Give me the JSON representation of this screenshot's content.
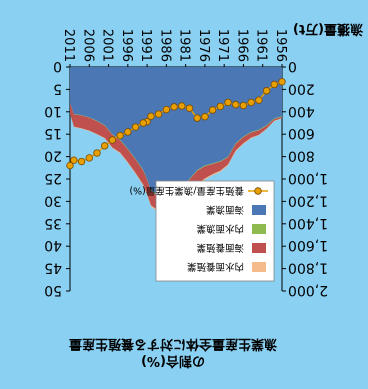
{
  "chart_data": {
    "type": "area",
    "title": "漁業生産量全体に対する養殖生産量",
    "subtitle": "の割合(%)",
    "ylabel": "漁獲量(万t)",
    "x": [
      1956,
      1958,
      1960,
      1962,
      1964,
      1966,
      1968,
      1970,
      1972,
      1974,
      1976,
      1978,
      1980,
      1982,
      1984,
      1986,
      1988,
      1990,
      1991,
      1992,
      1994,
      1996,
      1998,
      2000,
      2002,
      2004,
      2006,
      2008,
      2010,
      2011
    ],
    "x_ticks": [
      "1956",
      "1961",
      "1966",
      "1971",
      "1976",
      "1981",
      "1986",
      "1991",
      "1996",
      "2001",
      "2006",
      "2011"
    ],
    "x_tick_years": [
      1956,
      1961,
      1966,
      1971,
      1976,
      1981,
      1986,
      1991,
      1996,
      2001,
      2006,
      2011
    ],
    "left_ticks": [
      "0",
      "200",
      "400",
      "600",
      "800",
      "1,000",
      "1,200",
      "1,400",
      "1,600",
      "1,800",
      "2,000"
    ],
    "right_ticks": [
      "0",
      "5",
      "10",
      "15",
      "20",
      "25",
      "30",
      "35",
      "40",
      "45",
      "50"
    ],
    "left_range": [
      0,
      2000
    ],
    "right_range": [
      0,
      50
    ],
    "series": [
      {
        "name": "海面漁業",
        "color": "#4b78b4",
        "values": [
          440,
          460,
          520,
          560,
          580,
          620,
          680,
          800,
          840,
          860,
          880,
          920,
          1000,
          1080,
          1150,
          1170,
          1150,
          1100,
          1000,
          920,
          820,
          730,
          650,
          600,
          520,
          480,
          450,
          430,
          420,
          320
        ]
      },
      {
        "name": "内水面漁業",
        "color": "#8fba50",
        "values": [
          5,
          5,
          6,
          6,
          6,
          6,
          6,
          6,
          6,
          6,
          6,
          6,
          6,
          6,
          6,
          6,
          6,
          6,
          6,
          6,
          6,
          6,
          5,
          5,
          4,
          4,
          3,
          3,
          3,
          3
        ]
      },
      {
        "name": "海面養殖業",
        "color": "#c0504d",
        "values": [
          12,
          15,
          25,
          40,
          45,
          55,
          60,
          65,
          80,
          90,
          110,
          120,
          100,
          100,
          110,
          120,
          130,
          130,
          130,
          125,
          120,
          115,
          110,
          115,
          110,
          115,
          115,
          115,
          110,
          90
        ]
      },
      {
        "name": "内水面養殖業",
        "color": "#f5bb8a",
        "values": [
          3,
          4,
          4,
          5,
          6,
          7,
          8,
          9,
          10,
          10,
          10,
          10,
          10,
          10,
          10,
          10,
          10,
          9,
          9,
          8,
          7,
          7,
          6,
          6,
          5,
          4,
          4,
          4,
          4,
          4
        ]
      },
      {
        "name": "養殖生産量/漁業生産量(%)",
        "color": "#e8a000",
        "axis": "right",
        "values": [
          3.3,
          3.9,
          5.3,
          7.4,
          7.9,
          8.6,
          8.4,
          7.9,
          8.8,
          9.6,
          11.1,
          11.4,
          9.2,
          8.7,
          8.9,
          9.5,
          10.5,
          11.0,
          12.2,
          12.5,
          13.4,
          14.5,
          15.3,
          16.3,
          17.6,
          19.2,
          20.3,
          21.1,
          20.8,
          22.0
        ]
      }
    ],
    "legend": [
      "内水面養殖業",
      "海面養殖業",
      "内水面漁業",
      "海面漁業",
      "養殖生産量/漁業生産量(%)"
    ]
  }
}
